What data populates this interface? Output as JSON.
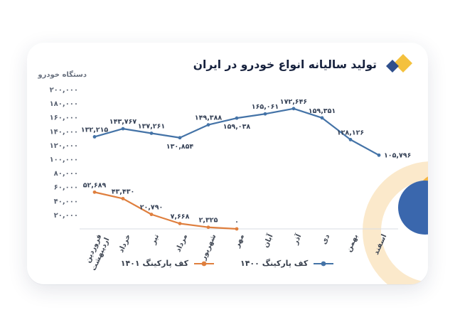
{
  "header": {
    "title": "تولید سالیانه انواع خودرو در ایران"
  },
  "logo": {
    "yellow": "#f4c13d",
    "navy": "#2f4f8c"
  },
  "decor": {
    "cream": "#fbe9cb",
    "blue": "#3a67ad",
    "orange": "#f3b545"
  },
  "chart_data": {
    "type": "line",
    "title": "تولید سالیانه انواع خودرو در ایران",
    "ylabel": "دستگاه خودرو",
    "ylim": [
      0,
      200000
    ],
    "grid": false,
    "legend_position": "bottom",
    "categories": [
      "فروردین اردیبهشت",
      "خرداد",
      "تیر",
      "مرداد",
      "شهریور",
      "مهر",
      "آبان",
      "آذر",
      "دی",
      "بهمن",
      "اسفند"
    ],
    "y_ticks": [
      {
        "value": 200000,
        "label": "۲۰۰,۰۰۰"
      },
      {
        "value": 180000,
        "label": "۱۸۰,۰۰۰"
      },
      {
        "value": 160000,
        "label": "۱۶۰,۰۰۰"
      },
      {
        "value": 140000,
        "label": "۱۴۰,۰۰۰"
      },
      {
        "value": 120000,
        "label": "۱۲۰,۰۰۰"
      },
      {
        "value": 100000,
        "label": "۱۰۰,۰۰۰"
      },
      {
        "value": 80000,
        "label": "۸۰,۰۰۰"
      },
      {
        "value": 60000,
        "label": "۶۰,۰۰۰"
      },
      {
        "value": 40000,
        "label": "۴۰,۰۰۰"
      },
      {
        "value": 20000,
        "label": "۲۰,۰۰۰"
      }
    ],
    "series": [
      {
        "name": "کف پارکینگ ۱۴۰۰",
        "color": "#4473a7",
        "values": [
          132215,
          143767,
          137261,
          130854,
          149388,
          159038,
          165061,
          172646,
          159351,
          128126,
          105796
        ],
        "labels": [
          "۱۳۲,۲۱۵",
          "۱۴۳,۷۶۷",
          "۱۳۷,۲۶۱",
          "۱۳۰,۸۵۴",
          "۱۴۹,۳۸۸",
          "۱۵۹,۰۳۸",
          "۱۶۵,۰۶۱",
          "۱۷۲,۶۴۶",
          "۱۵۹,۳۵۱",
          "۱۲۸,۱۲۶",
          "۱۰۵,۷۹۶"
        ],
        "label_pos": [
          "above",
          "above",
          "above",
          "below",
          "above",
          "below",
          "above",
          "above",
          "above",
          "above",
          "right"
        ]
      },
      {
        "name": "کف پارکینگ ۱۴۰۱",
        "color": "#df7f3e",
        "values": [
          52689,
          43430,
          20790,
          7668,
          2325,
          0,
          null,
          null,
          null,
          null,
          null
        ],
        "labels": [
          "۵۲,۶۸۹",
          "۴۳,۴۳۰",
          "۲۰,۷۹۰",
          "۷,۶۶۸",
          "۲,۳۲۵",
          "۰",
          "",
          "",
          "",
          "",
          ""
        ],
        "label_pos": [
          "above",
          "above",
          "above",
          "above",
          "above",
          "above",
          "",
          "",
          "",
          "",
          ""
        ]
      }
    ]
  }
}
